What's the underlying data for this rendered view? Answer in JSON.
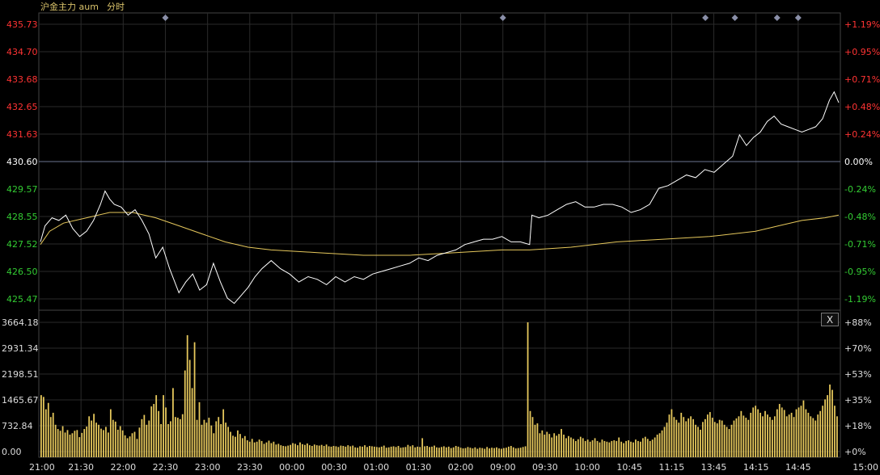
{
  "header": {
    "instrument": "沪金主力 aum",
    "mode": "分时"
  },
  "colors": {
    "background": "#000000",
    "grid": "#2a2a2a",
    "axis": "#444444",
    "price_line": "#ffffff",
    "avg_line": "#e6c85c",
    "volume": "#e6c85c",
    "up": "#ff3333",
    "down": "#33cc33",
    "neutral": "#ffffff",
    "marker": "#8a8fa8"
  },
  "close_button": {
    "label": "X"
  },
  "chart_data": [
    {
      "type": "line",
      "name": "price-panel",
      "y_ticks_left": [
        "435.73",
        "434.70",
        "433.68",
        "432.65",
        "431.63",
        "430.60",
        "429.57",
        "428.55",
        "427.52",
        "426.50",
        "425.47"
      ],
      "y_ticks_right": [
        "+1.19%",
        "+0.95%",
        "+0.71%",
        "+0.48%",
        "+0.24%",
        "0.00%",
        "-0.24%",
        "-0.48%",
        "-0.71%",
        "-0.95%",
        "-1.19%"
      ],
      "ylim": [
        425.47,
        435.73
      ],
      "reference_price": 430.6,
      "x_ticks": [
        "21:00",
        "21:30",
        "22:00",
        "22:30",
        "23:00",
        "23:30",
        "00:00",
        "00:30",
        "01:00",
        "01:30",
        "02:00",
        "09:00",
        "09:30",
        "10:00",
        "10:45",
        "11:15",
        "13:45",
        "14:15",
        "14:45",
        "15:00"
      ],
      "event_markers_at": [
        "22:30",
        "09:00",
        "13:30",
        "14:00",
        "14:30",
        "14:45"
      ],
      "series": [
        {
          "role": "price",
          "points": [
            [
              0,
              427.6
            ],
            [
              2,
              428.2
            ],
            [
              5,
              428.5
            ],
            [
              8,
              428.4
            ],
            [
              11,
              428.6
            ],
            [
              14,
              428.1
            ],
            [
              17,
              427.8
            ],
            [
              20,
              428.0
            ],
            [
              23,
              428.4
            ],
            [
              26,
              429.0
            ],
            [
              28,
              429.5
            ],
            [
              30,
              429.2
            ],
            [
              32,
              429.0
            ],
            [
              35,
              428.9
            ],
            [
              38,
              428.6
            ],
            [
              41,
              428.8
            ],
            [
              44,
              428.4
            ],
            [
              47,
              427.9
            ],
            [
              50,
              427.0
            ],
            [
              53,
              427.4
            ],
            [
              56,
              426.6
            ],
            [
              60,
              425.7
            ],
            [
              63,
              426.1
            ],
            [
              66,
              426.4
            ],
            [
              69,
              425.8
            ],
            [
              72,
              426.0
            ],
            [
              75,
              426.8
            ],
            [
              78,
              426.1
            ],
            [
              81,
              425.5
            ],
            [
              84,
              425.3
            ],
            [
              87,
              425.6
            ],
            [
              90,
              425.9
            ],
            [
              93,
              426.3
            ],
            [
              96,
              426.6
            ],
            [
              100,
              426.9
            ],
            [
              104,
              426.6
            ],
            [
              108,
              426.4
            ],
            [
              112,
              426.1
            ],
            [
              116,
              426.3
            ],
            [
              120,
              426.2
            ],
            [
              124,
              426.0
            ],
            [
              128,
              426.3
            ],
            [
              132,
              426.1
            ],
            [
              136,
              426.3
            ],
            [
              140,
              426.2
            ],
            [
              144,
              426.4
            ],
            [
              148,
              426.5
            ],
            [
              152,
              426.6
            ],
            [
              156,
              426.7
            ],
            [
              160,
              426.8
            ],
            [
              164,
              427.0
            ],
            [
              168,
              426.9
            ],
            [
              172,
              427.1
            ],
            [
              176,
              427.2
            ],
            [
              180,
              427.3
            ],
            [
              184,
              427.5
            ],
            [
              188,
              427.6
            ],
            [
              192,
              427.7
            ],
            [
              196,
              427.7
            ],
            [
              200,
              427.8
            ],
            [
              204,
              427.6
            ],
            [
              208,
              427.6
            ],
            [
              212,
              427.5
            ],
            [
              213,
              428.6
            ],
            [
              216,
              428.5
            ],
            [
              220,
              428.6
            ],
            [
              224,
              428.8
            ],
            [
              228,
              429.0
            ],
            [
              232,
              429.1
            ],
            [
              236,
              428.9
            ],
            [
              240,
              428.9
            ],
            [
              244,
              429.0
            ],
            [
              248,
              429.0
            ],
            [
              252,
              428.9
            ],
            [
              256,
              428.7
            ],
            [
              260,
              428.8
            ],
            [
              264,
              429.0
            ],
            [
              268,
              429.6
            ],
            [
              272,
              429.7
            ],
            [
              276,
              429.9
            ],
            [
              280,
              430.1
            ],
            [
              284,
              430.0
            ],
            [
              288,
              430.3
            ],
            [
              292,
              430.2
            ],
            [
              296,
              430.5
            ],
            [
              300,
              430.8
            ],
            [
              303,
              431.6
            ],
            [
              306,
              431.2
            ],
            [
              309,
              431.5
            ],
            [
              312,
              431.7
            ],
            [
              315,
              432.1
            ],
            [
              318,
              432.3
            ],
            [
              321,
              432.0
            ],
            [
              324,
              431.9
            ],
            [
              327,
              431.8
            ],
            [
              330,
              431.7
            ],
            [
              333,
              431.8
            ],
            [
              336,
              431.9
            ],
            [
              339,
              432.2
            ],
            [
              342,
              432.9
            ],
            [
              344,
              433.2
            ],
            [
              346,
              432.8
            ]
          ]
        },
        {
          "role": "average",
          "points": [
            [
              0,
              427.5
            ],
            [
              4,
              428.0
            ],
            [
              10,
              428.3
            ],
            [
              20,
              428.5
            ],
            [
              30,
              428.7
            ],
            [
              40,
              428.7
            ],
            [
              50,
              428.5
            ],
            [
              60,
              428.2
            ],
            [
              70,
              427.9
            ],
            [
              80,
              427.6
            ],
            [
              90,
              427.4
            ],
            [
              100,
              427.3
            ],
            [
              120,
              427.2
            ],
            [
              140,
              427.1
            ],
            [
              160,
              427.1
            ],
            [
              180,
              427.2
            ],
            [
              200,
              427.3
            ],
            [
              212,
              427.3
            ],
            [
              230,
              427.4
            ],
            [
              250,
              427.6
            ],
            [
              270,
              427.7
            ],
            [
              290,
              427.8
            ],
            [
              310,
              428.0
            ],
            [
              320,
              428.2
            ],
            [
              330,
              428.4
            ],
            [
              340,
              428.5
            ],
            [
              346,
              428.6
            ]
          ]
        }
      ]
    },
    {
      "type": "bar",
      "name": "volume-panel",
      "y_ticks_left": [
        "3664.18",
        "2931.34",
        "2198.51",
        "1465.67",
        "732.84",
        "0.00"
      ],
      "y_ticks_right": [
        "88%",
        "70%",
        "53%",
        "35%",
        "18%",
        "0%"
      ],
      "ylim": [
        0,
        3664.18
      ],
      "values": [
        1600,
        1550,
        1200,
        1380,
        980,
        1100,
        760,
        640,
        590,
        720,
        540,
        610,
        480,
        520,
        590,
        610,
        410,
        530,
        640,
        710,
        1000,
        880,
        1070,
        820,
        760,
        650,
        610,
        700,
        540,
        1200,
        900,
        850,
        620,
        720,
        600,
        460,
        380,
        430,
        520,
        560,
        360,
        680,
        920,
        1040,
        760,
        880,
        1280,
        1350,
        1600,
        1150,
        780,
        1600,
        1250,
        780,
        860,
        1800,
        980,
        960,
        920,
        1060,
        2300,
        3300,
        2600,
        1800,
        3100,
        900,
        1400,
        760,
        900,
        820,
        960,
        740,
        520,
        860,
        980,
        780,
        1200,
        820,
        700,
        560,
        450,
        420,
        600,
        500,
        380,
        440,
        320,
        280,
        360,
        260,
        280,
        340,
        300,
        220,
        260,
        310,
        240,
        280,
        200,
        220,
        180,
        160,
        150,
        170,
        190,
        240,
        220,
        180,
        260,
        210,
        190,
        230,
        180,
        160,
        200,
        180,
        170,
        190,
        160,
        200,
        150,
        140,
        160,
        150,
        130,
        170,
        160,
        140,
        180,
        150,
        170,
        120,
        110,
        150,
        140,
        180,
        130,
        160,
        150,
        140,
        130,
        120,
        140,
        170,
        110,
        120,
        140,
        150,
        130,
        160,
        110,
        120,
        130,
        190,
        150,
        180,
        120,
        140,
        130,
        380,
        150,
        160,
        130,
        140,
        170,
        120,
        110,
        130,
        150,
        120,
        140,
        100,
        120,
        160,
        140,
        110,
        90,
        100,
        130,
        110,
        90,
        120,
        80,
        110,
        100,
        80,
        130,
        90,
        110,
        100,
        120,
        90,
        80,
        100,
        110,
        140,
        160,
        120,
        90,
        100,
        110,
        130,
        150,
        3664,
        1150,
        980,
        760,
        800,
        520,
        600,
        480,
        560,
        500,
        400,
        520,
        450,
        500,
        640,
        480,
        380,
        440,
        400,
        360,
        300,
        350,
        420,
        380,
        300,
        340,
        280,
        320,
        380,
        300,
        260,
        340,
        300,
        280,
        260,
        300,
        320,
        300,
        400,
        280,
        240,
        300,
        320,
        280,
        260,
        340,
        300,
        280,
        380,
        420,
        360,
        300,
        340,
        400,
        480,
        520,
        600,
        700,
        820,
        1050,
        1200,
        980,
        900,
        820,
        1100,
        980,
        860,
        940,
        1000,
        920,
        760,
        700,
        620,
        840,
        920,
        1050,
        1120,
        960,
        840,
        800,
        900,
        880,
        760,
        700,
        640,
        760,
        880,
        940,
        1000,
        1150,
        1020,
        960,
        900,
        1100,
        1250,
        1300,
        1200,
        1100,
        1000,
        1150,
        1050,
        980,
        900,
        1000,
        1200,
        1350,
        1250,
        1180,
        1000,
        1050,
        1100,
        980,
        1200,
        1250,
        1300,
        1450,
        1200,
        1100,
        1000,
        950,
        880,
        1050,
        1150,
        1300,
        1480,
        1600,
        1900,
        1750,
        1300,
        1000
      ]
    }
  ]
}
